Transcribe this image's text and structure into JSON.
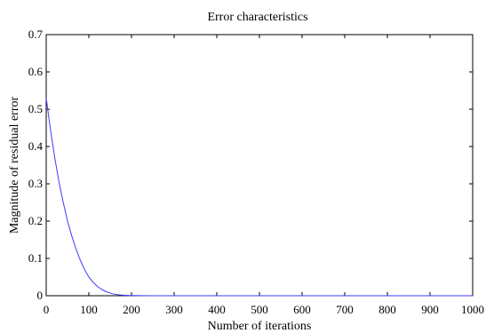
{
  "chart_data": {
    "type": "line",
    "title": "Error characteristics",
    "xlabel": "Number of iterations",
    "ylabel": "Magnitude of residual error",
    "xlim": [
      0,
      1000
    ],
    "ylim": [
      0,
      0.7
    ],
    "xticks": [
      0,
      100,
      200,
      300,
      400,
      500,
      600,
      700,
      800,
      900,
      1000
    ],
    "yticks": [
      0,
      0.1,
      0.2,
      0.3,
      0.4,
      0.5,
      0.6,
      0.7
    ],
    "xtick_labels": [
      "0",
      "100",
      "200",
      "300",
      "400",
      "500",
      "600",
      "700",
      "800",
      "900",
      "1000"
    ],
    "ytick_labels": [
      "0",
      "0.1",
      "0.2",
      "0.3",
      "0.4",
      "0.5",
      "0.6",
      "0.7"
    ],
    "grid": false,
    "series": [
      {
        "color": "#3b3bff",
        "x": [
          0,
          10,
          20,
          30,
          40,
          50,
          60,
          70,
          80,
          90,
          100,
          110,
          120,
          130,
          140,
          150,
          160,
          170,
          180,
          190,
          200,
          220,
          240,
          260,
          300,
          400,
          500,
          600,
          700,
          800,
          900,
          1000
        ],
        "y": [
          0.53,
          0.445,
          0.37,
          0.305,
          0.25,
          0.2,
          0.16,
          0.125,
          0.095,
          0.07,
          0.05,
          0.036,
          0.025,
          0.017,
          0.011,
          0.007,
          0.004,
          0.0025,
          0.0015,
          0.001,
          0.0006,
          0.0002,
          0.0001,
          0,
          0,
          0,
          0,
          0,
          0,
          0,
          0,
          0
        ]
      }
    ]
  }
}
